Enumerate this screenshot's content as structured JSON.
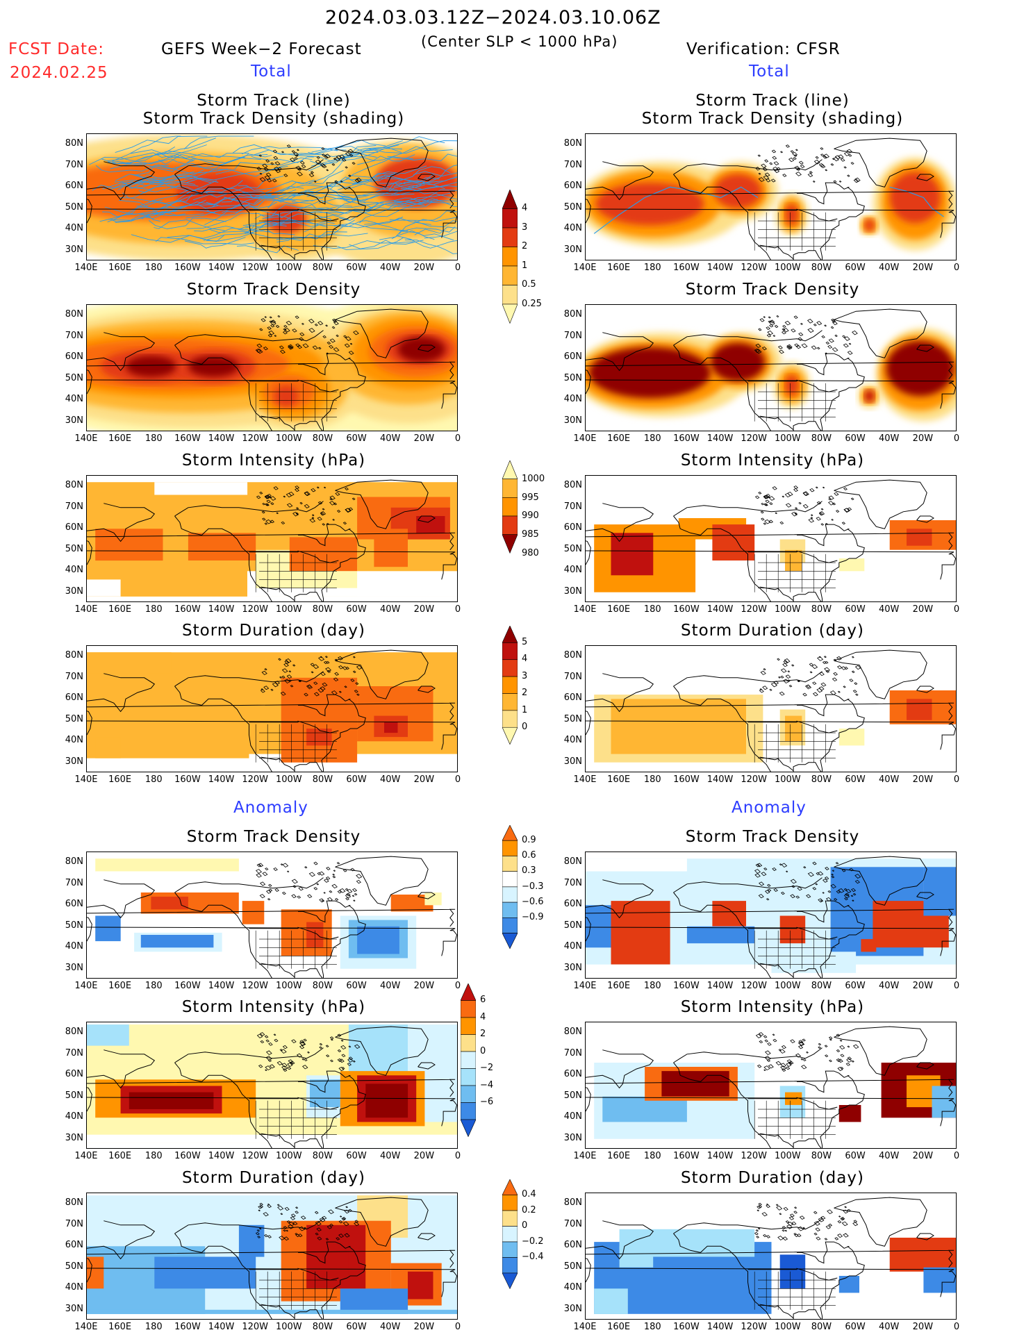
{
  "header": {
    "date_range": "2024.03.03.12Z−2024.03.10.06Z",
    "subtitle": "(Center SLP < 1000 hPa)",
    "fcst_label": "FCST Date:",
    "fcst_date": "2024.02.25",
    "left_title": "GEFS Week−2 Forecast",
    "right_title": "Verification: CFSR",
    "left_total": "Total",
    "right_total": "Total",
    "left_anomaly": "Anomaly",
    "right_anomaly": "Anomaly"
  },
  "panels": {
    "r1_line1": "Storm Track (line)",
    "r1_line2": "Storm Track Density (shading)",
    "r2": "Storm Track Density",
    "r3": "Storm Intensity (hPa)",
    "r4": "Storm Duration (day)",
    "r5": "Storm Track Density",
    "r6": "Storm Intensity (hPa)",
    "r7": "Storm Duration (day)"
  },
  "axes": {
    "lat": [
      "80N",
      "70N",
      "60N",
      "50N",
      "40N",
      "30N"
    ],
    "lon": [
      "140E",
      "160E",
      "180",
      "160W",
      "140W",
      "120W",
      "100W",
      "80W",
      "60W",
      "40W",
      "20W",
      "0"
    ]
  },
  "colorbars": {
    "density": [
      "4",
      "3",
      "2",
      "1",
      "0.5",
      "0.25"
    ],
    "intensity": [
      "1000",
      "995",
      "990",
      "985",
      "980"
    ],
    "duration": [
      "5",
      "4",
      "3",
      "2",
      "1",
      "0"
    ],
    "anom_density": [
      "0.9",
      "0.6",
      "0.3",
      "−0.3",
      "−0.6",
      "−0.9"
    ],
    "anom_intensity": [
      "6",
      "4",
      "2",
      "0",
      "−2",
      "−4",
      "−6"
    ],
    "anom_duration": [
      "0.4",
      "0.2",
      "0",
      "−0.2",
      "−0.4"
    ]
  },
  "colors": {
    "pos": [
      "#fff8b0",
      "#fde08a",
      "#ffb633",
      "#ff9400",
      "#f96b11",
      "#e33b12",
      "#c0110e",
      "#8f0000"
    ],
    "neg": [
      "#d8f4ff",
      "#a6e2fa",
      "#6fbdf0",
      "#3d8ae6",
      "#1a5ad4"
    ],
    "track_line": "#2a9be8"
  }
}
